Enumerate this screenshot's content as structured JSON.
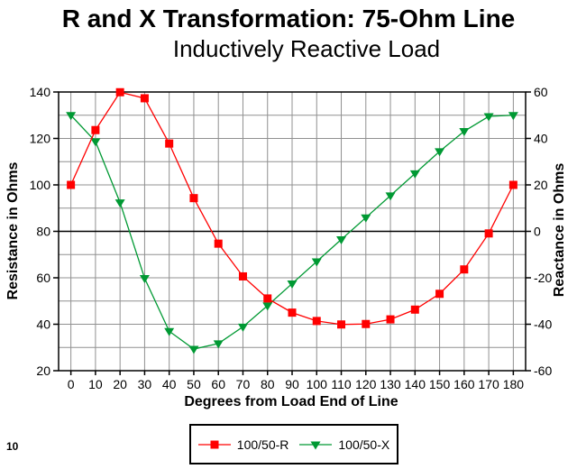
{
  "page": {
    "number": "10",
    "background_color": "#FFFFFF"
  },
  "chart": {
    "title": "R and X Transformation: 75-Ohm Line",
    "subtitle": "Inductively Reactive Load",
    "x_axis_title": "Degrees from Load End of Line",
    "left_axis_title": "Resistance in Ohms",
    "right_axis_title": "Reactance in Ohms"
  },
  "chart_data": {
    "type": "line",
    "title": "R and X Transformation: 75-Ohm Line",
    "subtitle": "Inductively Reactive Load",
    "xlabel": "Degrees from Load End of Line",
    "x": [
      0,
      10,
      20,
      30,
      40,
      50,
      60,
      70,
      80,
      90,
      100,
      110,
      120,
      130,
      140,
      150,
      160,
      170,
      180
    ],
    "x_tick_labels": [
      "0",
      "10",
      "20",
      "30",
      "40",
      "50",
      "60",
      "70",
      "80",
      "90",
      "100",
      "110",
      "120",
      "130",
      "140",
      "150",
      "160",
      "170",
      "180"
    ],
    "left_axis": {
      "title": "Resistance in Ohms",
      "min": 20,
      "max": 140,
      "label_step": 20,
      "grid_step": 10,
      "tick_labels": [
        "140",
        "120",
        "100",
        "80",
        "60",
        "40",
        "20"
      ],
      "tick_values": [
        140,
        120,
        100,
        80,
        60,
        40,
        20
      ]
    },
    "right_axis": {
      "title": "Reactance in Ohms",
      "min": -60,
      "max": 60,
      "label_step": 20,
      "tick_labels": [
        "60",
        "40",
        "20",
        "0",
        "-20",
        "-40",
        "-60"
      ],
      "tick_values": [
        60,
        40,
        20,
        0,
        -20,
        -40,
        -60
      ],
      "zero_line_black": true
    },
    "grid": true,
    "colors": {
      "grid": "#909090",
      "axis": "#000000",
      "background": "#FFFFFF"
    },
    "series": [
      {
        "name": "100/50-R",
        "axis": "left",
        "color": "#FF0000",
        "marker": "square",
        "values": [
          100,
          123.6,
          139.9,
          137.3,
          117.8,
          94.3,
          74.7,
          60.6,
          51.1,
          45,
          41.4,
          39.9,
          40.1,
          42.1,
          46.3,
          53.1,
          63.6,
          79.1,
          100
        ]
      },
      {
        "name": "100/50-X",
        "axis": "right",
        "color": "#009933",
        "marker": "triangle-down",
        "values": [
          50,
          38.7,
          12.4,
          -20.2,
          -43,
          -50.7,
          -48.3,
          -41.1,
          -32,
          -22.5,
          -13,
          -3.5,
          5.9,
          15.4,
          24.9,
          34.4,
          43.1,
          49.5,
          50
        ]
      }
    ],
    "legend": {
      "position": "bottom",
      "items": [
        "100/50-R",
        "100/50-X"
      ]
    }
  }
}
